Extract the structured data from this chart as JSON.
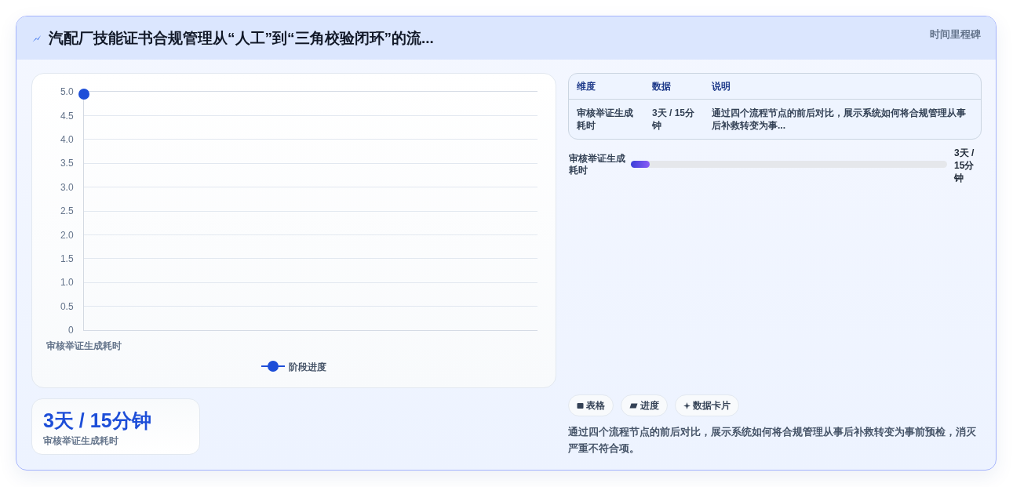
{
  "chart_data": [
    {
      "type": "line",
      "title": "汽配厂技能证书合规管理从“人工”到“三角校验闭环”的流...",
      "categories": [
        "审核举证生成耗时"
      ],
      "series": [
        {
          "name": "阶段进度",
          "color": "#1d4ed8",
          "values": [
            4.95
          ]
        }
      ],
      "ylim": [
        0,
        5
      ],
      "yticks": [
        0,
        0.5,
        {
          "value": 1,
          "label": "1.0"
        },
        1.5,
        {
          "value": 2,
          "label": "2.0"
        },
        2.5,
        {
          "value": 3,
          "label": "3.0"
        },
        3.5,
        {
          "value": 4,
          "label": "4.0"
        },
        4.5,
        {
          "value": 5,
          "label": "5.0"
        }
      ],
      "grid": "y",
      "legend": "bottom",
      "marker": "circle"
    },
    {
      "type": "other",
      "title": "时间里程碑"
    },
    {
      "type": "other",
      "annotations": [
        "维度",
        "数据",
        "说明",
        "审核举证生成耗时",
        "3天 / 15分钟",
        "通过四个流程节点的前后对比，展示系统如何将合规管理从事后补救转变为事...",
        "审核举证生成耗时",
        "3天 / 15分钟",
        "表格",
        "进度",
        "数据卡片",
        "通过四个流程节点的前后对比，展示系统如何将合规管理从事后补救转变为事前预检，消灭严重不符合项。"
      ]
    },
    {
      "type": "other",
      "title": "3天 / 15分钟",
      "subtitle": "审核举证生成耗时"
    }
  ]
}
